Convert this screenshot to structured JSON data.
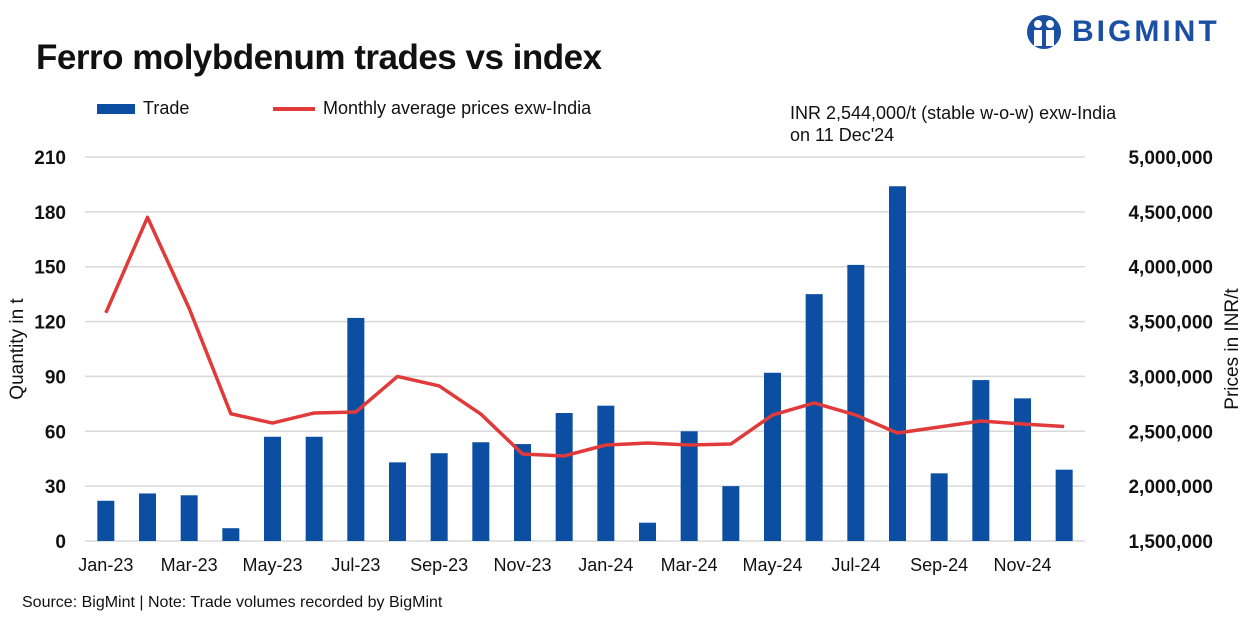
{
  "brand": {
    "logo_text": "BIGMINT",
    "color": "#1a4fa3"
  },
  "chart_data": {
    "type": "bar+line",
    "title": "Ferro molybdenum trades vs index",
    "categories": [
      "Jan-23",
      "Feb-23",
      "Mar-23",
      "Apr-23",
      "May-23",
      "Jun-23",
      "Jul-23",
      "Aug-23",
      "Sep-23",
      "Oct-23",
      "Nov-23",
      "Dec-23",
      "Jan-24",
      "Feb-24",
      "Mar-24",
      "Apr-24",
      "May-24",
      "Jun-24",
      "Jul-24",
      "Aug-24",
      "Sep-24",
      "Oct-24",
      "Nov-24",
      "Dec-24"
    ],
    "x_tick_labels": [
      "Jan-23",
      "Mar-23",
      "May-23",
      "Jul-23",
      "Sep-23",
      "Nov-23",
      "Jan-24",
      "Mar-24",
      "May-24",
      "Jul-24",
      "Sep-24",
      "Nov-24"
    ],
    "series": [
      {
        "name": "Trade",
        "type": "bar",
        "axis": "left",
        "color": "#0b4ea2",
        "values": [
          22,
          26,
          25,
          7,
          57,
          57,
          122,
          43,
          48,
          54,
          53,
          70,
          74,
          10,
          60,
          30,
          92,
          135,
          151,
          194,
          37,
          88,
          78,
          39
        ]
      },
      {
        "name": "Monthly average prices exw-India",
        "type": "line",
        "axis": "right",
        "color": "#e03a3a",
        "values": [
          3580000,
          4450000,
          3620000,
          2660000,
          2575000,
          2667000,
          2676000,
          3000000,
          2913000,
          2657000,
          2293000,
          2275000,
          2375000,
          2393000,
          2375000,
          2384000,
          2648000,
          2758000,
          2648000,
          2484000,
          2539000,
          2594000,
          2566000,
          2544000
        ]
      }
    ],
    "ylabel": "Quantity in t",
    "ylim": [
      0,
      210
    ],
    "y_ticks": [
      "0",
      "30",
      "60",
      "90",
      "120",
      "150",
      "180",
      "210"
    ],
    "y2label": "Prices in INR/t",
    "y2lim": [
      1500000,
      5000000
    ],
    "y2_ticks": [
      "1,500,000",
      "2,000,000",
      "2,500,000",
      "3,000,000",
      "3,500,000",
      "4,000,000",
      "4,500,000",
      "5,000,000"
    ],
    "grid": true,
    "legend_position": "top-left",
    "annotation": [
      "INR 2,544,000/t (stable w-o-w) exw-India",
      "on 11 Dec'24"
    ]
  },
  "source": "Source: BigMint | Note: Trade volumes recorded by BigMint"
}
